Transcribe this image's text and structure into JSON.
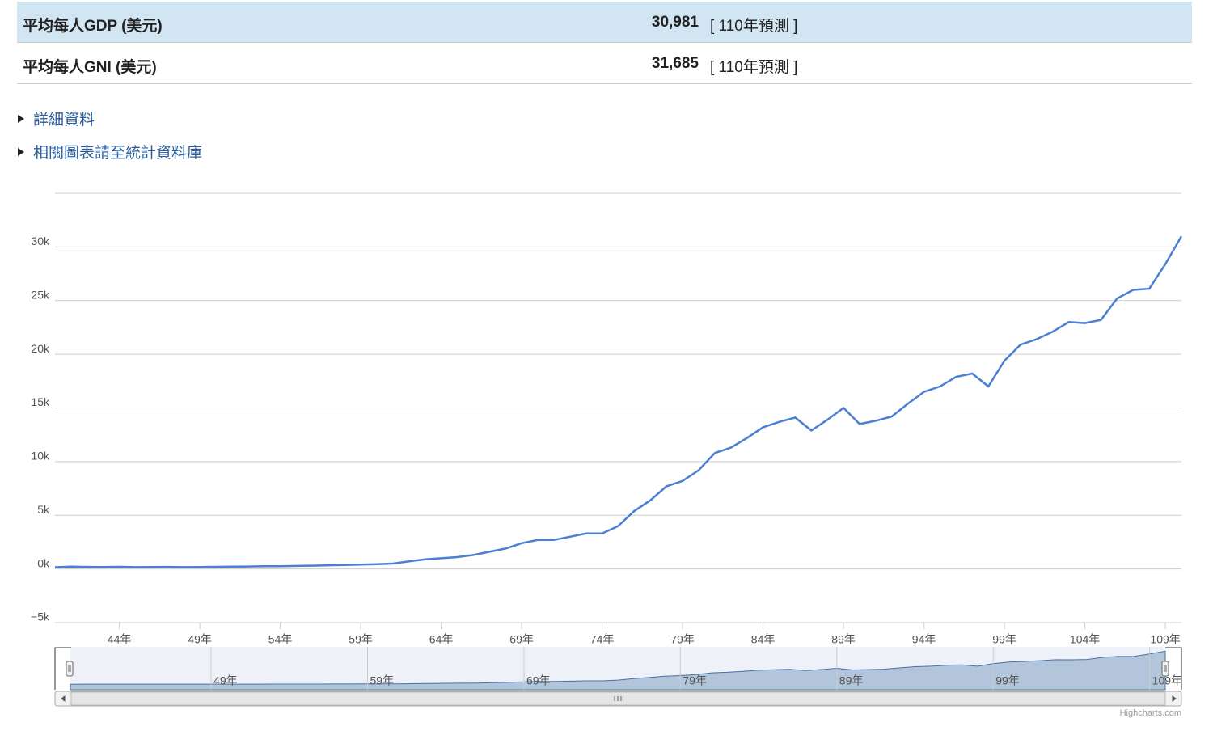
{
  "table": {
    "rows": [
      [
        "平均每人GDP (美元)",
        "30,981",
        "[ 110年預測 ]"
      ],
      [
        "平均每人GNI (美元)",
        "31,685",
        "[ 110年預測 ]"
      ]
    ]
  },
  "links": [
    "詳細資料",
    "相關圖表請至統計資料庫"
  ],
  "chart_data": {
    "type": "line",
    "color": "#4a7fd4",
    "x": [
      40,
      41,
      42,
      43,
      44,
      45,
      46,
      47,
      48,
      49,
      50,
      51,
      52,
      53,
      54,
      55,
      56,
      57,
      58,
      59,
      60,
      61,
      62,
      63,
      64,
      65,
      66,
      67,
      68,
      69,
      70,
      71,
      72,
      73,
      74,
      75,
      76,
      77,
      78,
      79,
      80,
      81,
      82,
      83,
      84,
      85,
      86,
      87,
      88,
      89,
      90,
      91,
      92,
      93,
      94,
      95,
      96,
      97,
      98,
      99,
      100,
      101,
      102,
      103,
      104,
      105,
      106,
      107,
      108,
      109,
      110
    ],
    "values": [
      160,
      210,
      190,
      180,
      200,
      170,
      180,
      190,
      170,
      180,
      200,
      210,
      230,
      250,
      260,
      280,
      300,
      340,
      370,
      400,
      450,
      500,
      700,
      900,
      1000,
      1100,
      1300,
      1600,
      1900,
      2400,
      2700,
      2700,
      3000,
      3300,
      3300,
      4000,
      5400,
      6400,
      7700,
      8200,
      9200,
      10800,
      11300,
      12200,
      13200,
      13700,
      14100,
      12900,
      13900,
      15000,
      13500,
      13800,
      14200,
      15400,
      16500,
      17000,
      17900,
      18200,
      17000,
      19400,
      20900,
      21400,
      22100,
      23000,
      22900,
      23200,
      25200,
      26000,
      26100,
      28400,
      31000
    ],
    "xlim": [
      40,
      110
    ],
    "ylim": [
      -5000,
      35000
    ],
    "xticks": [
      {
        "value": 44,
        "label": "44年"
      },
      {
        "value": 49,
        "label": "49年"
      },
      {
        "value": 54,
        "label": "54年"
      },
      {
        "value": 59,
        "label": "59年"
      },
      {
        "value": 64,
        "label": "64年"
      },
      {
        "value": 69,
        "label": "69年"
      },
      {
        "value": 74,
        "label": "74年"
      },
      {
        "value": 79,
        "label": "79年"
      },
      {
        "value": 84,
        "label": "84年"
      },
      {
        "value": 89,
        "label": "89年"
      },
      {
        "value": 94,
        "label": "94年"
      },
      {
        "value": 99,
        "label": "99年"
      },
      {
        "value": 104,
        "label": "104年"
      },
      {
        "value": 109,
        "label": "109年"
      }
    ],
    "yticks": [
      {
        "value": -5000,
        "label": "−5k"
      },
      {
        "value": 0,
        "label": "0k"
      },
      {
        "value": 5000,
        "label": "5k"
      },
      {
        "value": 10000,
        "label": "10k"
      },
      {
        "value": 15000,
        "label": "15k"
      },
      {
        "value": 20000,
        "label": "20k"
      },
      {
        "value": 25000,
        "label": "25k"
      },
      {
        "value": 30000,
        "label": "30k"
      }
    ],
    "grid": true,
    "navigator_xticks": [
      {
        "value": 49,
        "label": "49年"
      },
      {
        "value": 59,
        "label": "59年"
      },
      {
        "value": 69,
        "label": "69年"
      },
      {
        "value": 79,
        "label": "79年"
      },
      {
        "value": 89,
        "label": "89年"
      },
      {
        "value": 99,
        "label": "99年"
      },
      {
        "value": 109,
        "label": "109年"
      }
    ],
    "credits": "Highcharts.com"
  }
}
